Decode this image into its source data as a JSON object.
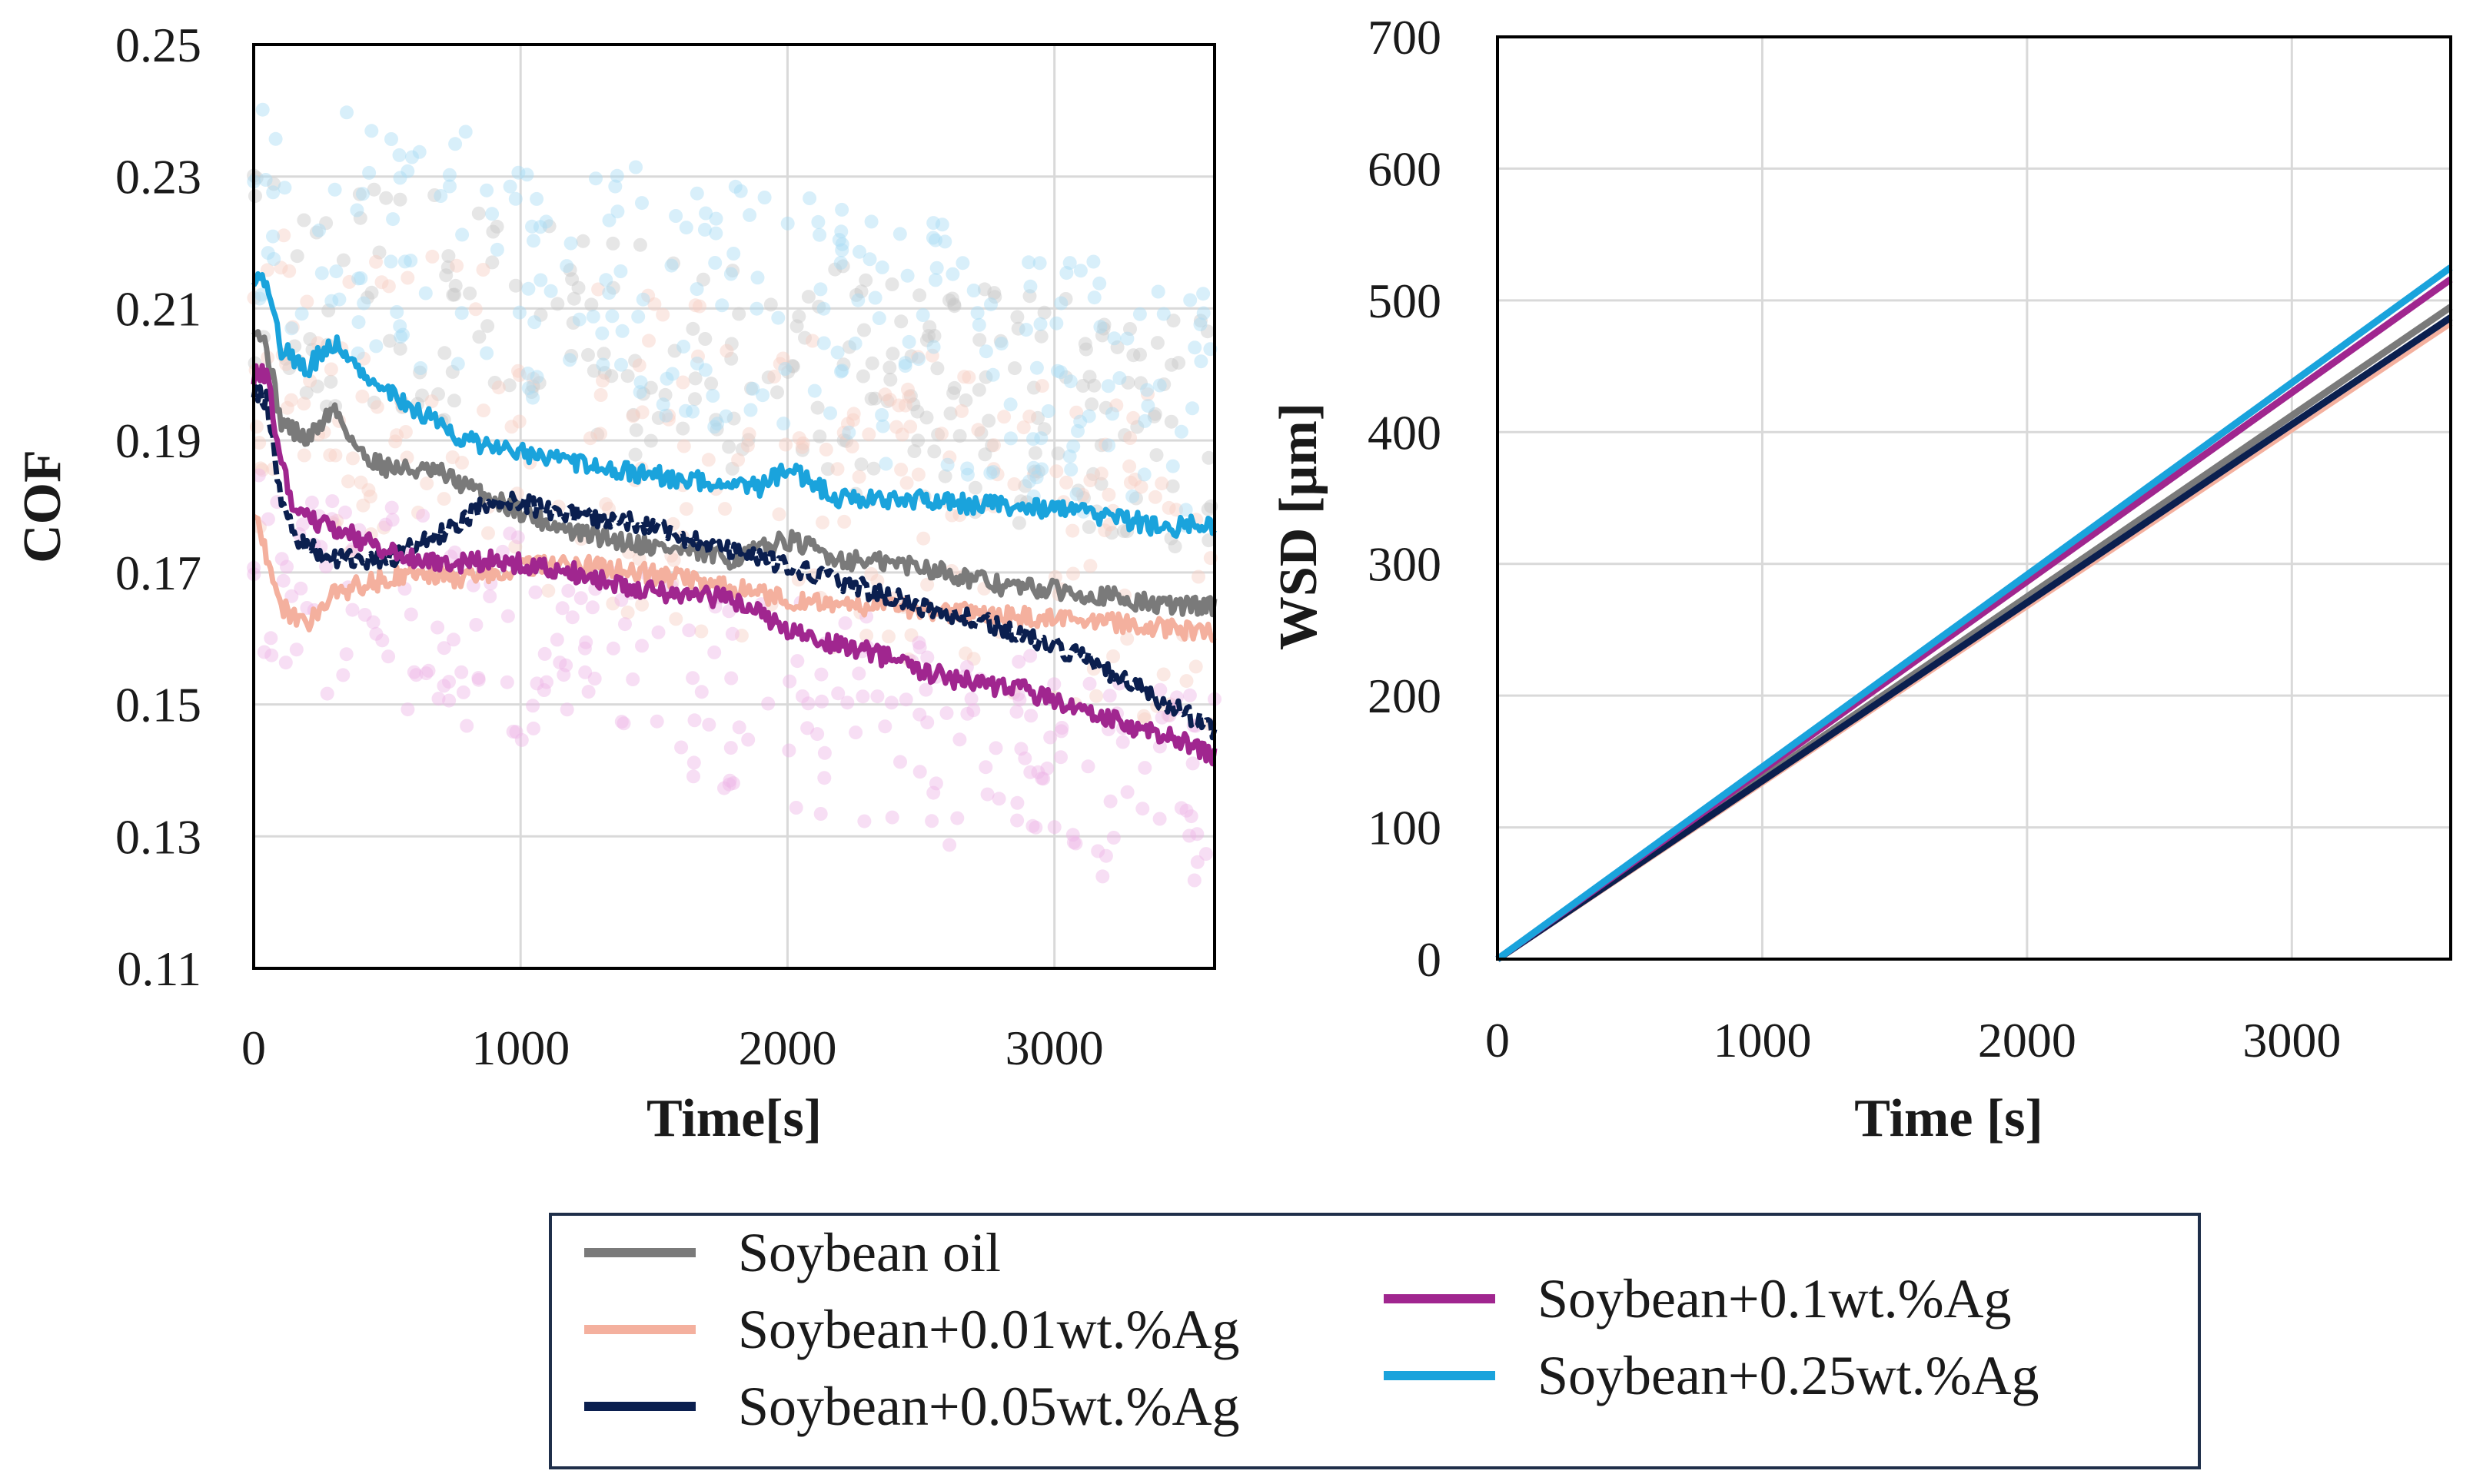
{
  "colors": {
    "Soybean oil": "#7a7a7a",
    "Soybean+0.01wt.%Ag": "#f4b09e",
    "Soybean+0.05wt.%Ag": "#0b1f4f",
    "Soybean+0.1wt.%Ag": "#a0268f",
    "Soybean+0.25wt.%Ag": "#1aa3dc"
  },
  "scatter_colors": [
    "#c8c8c8",
    "#f7cfc3",
    "#eeb6e6",
    "#a9dcf3"
  ],
  "chart_data": [
    {
      "id": "cof",
      "type": "line",
      "title": "",
      "xlabel": "Time[s]",
      "ylabel": "COF",
      "xlim": [
        0,
        3600
      ],
      "ylim": [
        0.11,
        0.25
      ],
      "xticks": [
        0,
        1000,
        2000,
        3000
      ],
      "yticks": [
        0.11,
        0.13,
        0.15,
        0.17,
        0.19,
        0.21,
        0.23,
        0.25
      ],
      "ytick_labels": [
        "0.11",
        "0.13",
        "0.15",
        "0.17",
        "0.19",
        "0.21",
        "0.23",
        "0.25"
      ],
      "grid": true,
      "series": [
        {
          "name": "Soybean oil",
          "x": [
            0,
            50,
            100,
            200,
            300,
            400,
            500,
            700,
            900,
            1200,
            1500,
            1800,
            2000,
            2200,
            2500,
            2800,
            3100,
            3400,
            3600
          ],
          "values": [
            0.208,
            0.204,
            0.193,
            0.19,
            0.195,
            0.188,
            0.186,
            0.185,
            0.181,
            0.176,
            0.174,
            0.172,
            0.175,
            0.172,
            0.171,
            0.168,
            0.167,
            0.165,
            0.165
          ]
        },
        {
          "name": "Soybean+0.01wt.%Ag",
          "x": [
            0,
            50,
            100,
            200,
            300,
            400,
            600,
            800,
            1000,
            1300,
            1600,
            2000,
            2300,
            2600,
            3000,
            3300,
            3600
          ],
          "values": [
            0.18,
            0.172,
            0.165,
            0.162,
            0.167,
            0.168,
            0.17,
            0.169,
            0.171,
            0.171,
            0.169,
            0.166,
            0.165,
            0.164,
            0.163,
            0.162,
            0.161
          ]
        },
        {
          "name": "Soybean+0.05wt.%Ag",
          "x": [
            0,
            50,
            100,
            150,
            200,
            300,
            500,
            700,
            900,
            1200,
            1500,
            1800,
            2100,
            2400,
            2700,
            3000,
            3300,
            3600
          ],
          "values": [
            0.198,
            0.196,
            0.182,
            0.176,
            0.174,
            0.172,
            0.172,
            0.176,
            0.181,
            0.179,
            0.177,
            0.173,
            0.17,
            0.166,
            0.163,
            0.159,
            0.153,
            0.146
          ]
        },
        {
          "name": "Soybean+0.1wt.%Ag",
          "x": [
            0,
            50,
            100,
            150,
            200,
            300,
            500,
            700,
            900,
            1200,
            1500,
            1800,
            2000,
            2300,
            2600,
            2900,
            3200,
            3500,
            3600
          ],
          "values": [
            0.2,
            0.2,
            0.187,
            0.18,
            0.178,
            0.177,
            0.173,
            0.171,
            0.172,
            0.17,
            0.167,
            0.166,
            0.161,
            0.158,
            0.154,
            0.152,
            0.148,
            0.144,
            0.142
          ]
        },
        {
          "name": "Soybean+0.25wt.%Ag",
          "x": [
            0,
            50,
            100,
            200,
            300,
            400,
            600,
            800,
            1000,
            1300,
            1600,
            1900,
            2000,
            2200,
            2500,
            2800,
            3100,
            3400,
            3600
          ],
          "values": [
            0.215,
            0.214,
            0.204,
            0.201,
            0.205,
            0.2,
            0.195,
            0.19,
            0.188,
            0.186,
            0.184,
            0.183,
            0.186,
            0.181,
            0.181,
            0.18,
            0.179,
            0.177,
            0.177
          ]
        }
      ]
    },
    {
      "id": "wsd",
      "type": "line",
      "title": "",
      "xlabel": "Time [s]",
      "ylabel": "WSD [µm]",
      "xlim": [
        0,
        3600
      ],
      "ylim": [
        0,
        700
      ],
      "xticks": [
        0,
        1000,
        2000,
        3000
      ],
      "yticks": [
        0,
        100,
        200,
        300,
        400,
        500,
        600,
        700
      ],
      "ytick_labels": [
        "0",
        "100",
        "200",
        "300",
        "400",
        "500",
        "600",
        "700"
      ],
      "grid": true,
      "series": [
        {
          "name": "Soybean oil",
          "x": [
            0,
            3600
          ],
          "values": [
            0,
            495
          ]
        },
        {
          "name": "Soybean+0.01wt.%Ag",
          "x": [
            0,
            3600
          ],
          "values": [
            0,
            483
          ]
        },
        {
          "name": "Soybean+0.05wt.%Ag",
          "x": [
            0,
            3600
          ],
          "values": [
            0,
            487
          ]
        },
        {
          "name": "Soybean+0.1wt.%Ag",
          "x": [
            0,
            3600
          ],
          "values": [
            0,
            516
          ]
        },
        {
          "name": "Soybean+0.25wt.%Ag",
          "x": [
            0,
            3600
          ],
          "values": [
            0,
            525
          ]
        }
      ]
    }
  ],
  "legend": {
    "position": "bottom-center",
    "entries": [
      "Soybean oil",
      "Soybean+0.01wt.%Ag",
      "Soybean+0.05wt.%Ag",
      "Soybean+0.1wt.%Ag",
      "Soybean+0.25wt.%Ag"
    ]
  }
}
